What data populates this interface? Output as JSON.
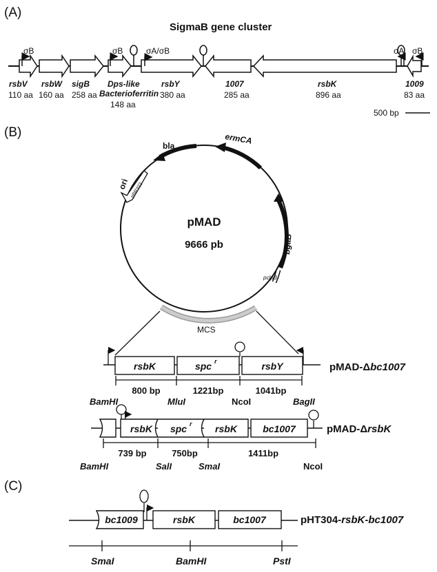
{
  "panels": {
    "a": "(A)",
    "b": "(B)",
    "c": "(C)"
  },
  "panel_a": {
    "title": "SigmaB gene cluster",
    "promoter_sigmaB": "σB",
    "promoter_sigmaA_B": "σA/σB",
    "promoter_sigmaA": "σA",
    "genes": [
      {
        "name": "rsbV",
        "size": "110 aa"
      },
      {
        "name": "rsbW",
        "size": "160 aa"
      },
      {
        "name": "sigB",
        "size": "258 aa"
      },
      {
        "name": "Dps-like",
        "name2": "Bacterioferritin",
        "size": "148 aa"
      },
      {
        "name": "rsbY",
        "size": "380 aa"
      },
      {
        "name": "1007",
        "size": "285 aa"
      },
      {
        "name": "rsbK",
        "size": "896 aa"
      },
      {
        "name": "1009",
        "size": "83 aa"
      }
    ],
    "scale": "500 bp"
  },
  "panel_b": {
    "plasmid_name": "pMAD",
    "plasmid_size": "9666 pb",
    "features": {
      "bla": "bla",
      "ermCA": "ermCA",
      "ori": "ori",
      "pbr322": "pBR322",
      "bgaB": "bgaB",
      "pclpB": "pclpB",
      "mcs": "MCS"
    },
    "construct1": {
      "name_prefix": "pMAD-Δ",
      "name_gene": "bc1007",
      "boxes": [
        "rsbK",
        "spc",
        "rsbY"
      ],
      "superscript": "r",
      "segments": [
        "800 bp",
        "1221bp",
        "1041bp"
      ],
      "sites": [
        "BamHI",
        "MluI",
        "NcoI",
        "BagII"
      ]
    },
    "construct2": {
      "name_prefix": "pMAD-Δ",
      "name_gene": "rsbK",
      "boxes": [
        "rsbK",
        "spc",
        "rsbK",
        "bc1007"
      ],
      "superscript": "r",
      "segments": [
        "739 bp",
        "750bp",
        "1411bp"
      ],
      "sites": [
        "BamHI",
        "SalI",
        "SmaI",
        "NcoI"
      ]
    }
  },
  "panel_c": {
    "boxes": [
      "bc1009",
      "rsbK",
      "bc1007"
    ],
    "name_prefix": "pHT304-",
    "name_gene": "rsbK-bc1007",
    "sites": [
      "SmaI",
      "BamHI",
      "PstI"
    ]
  }
}
